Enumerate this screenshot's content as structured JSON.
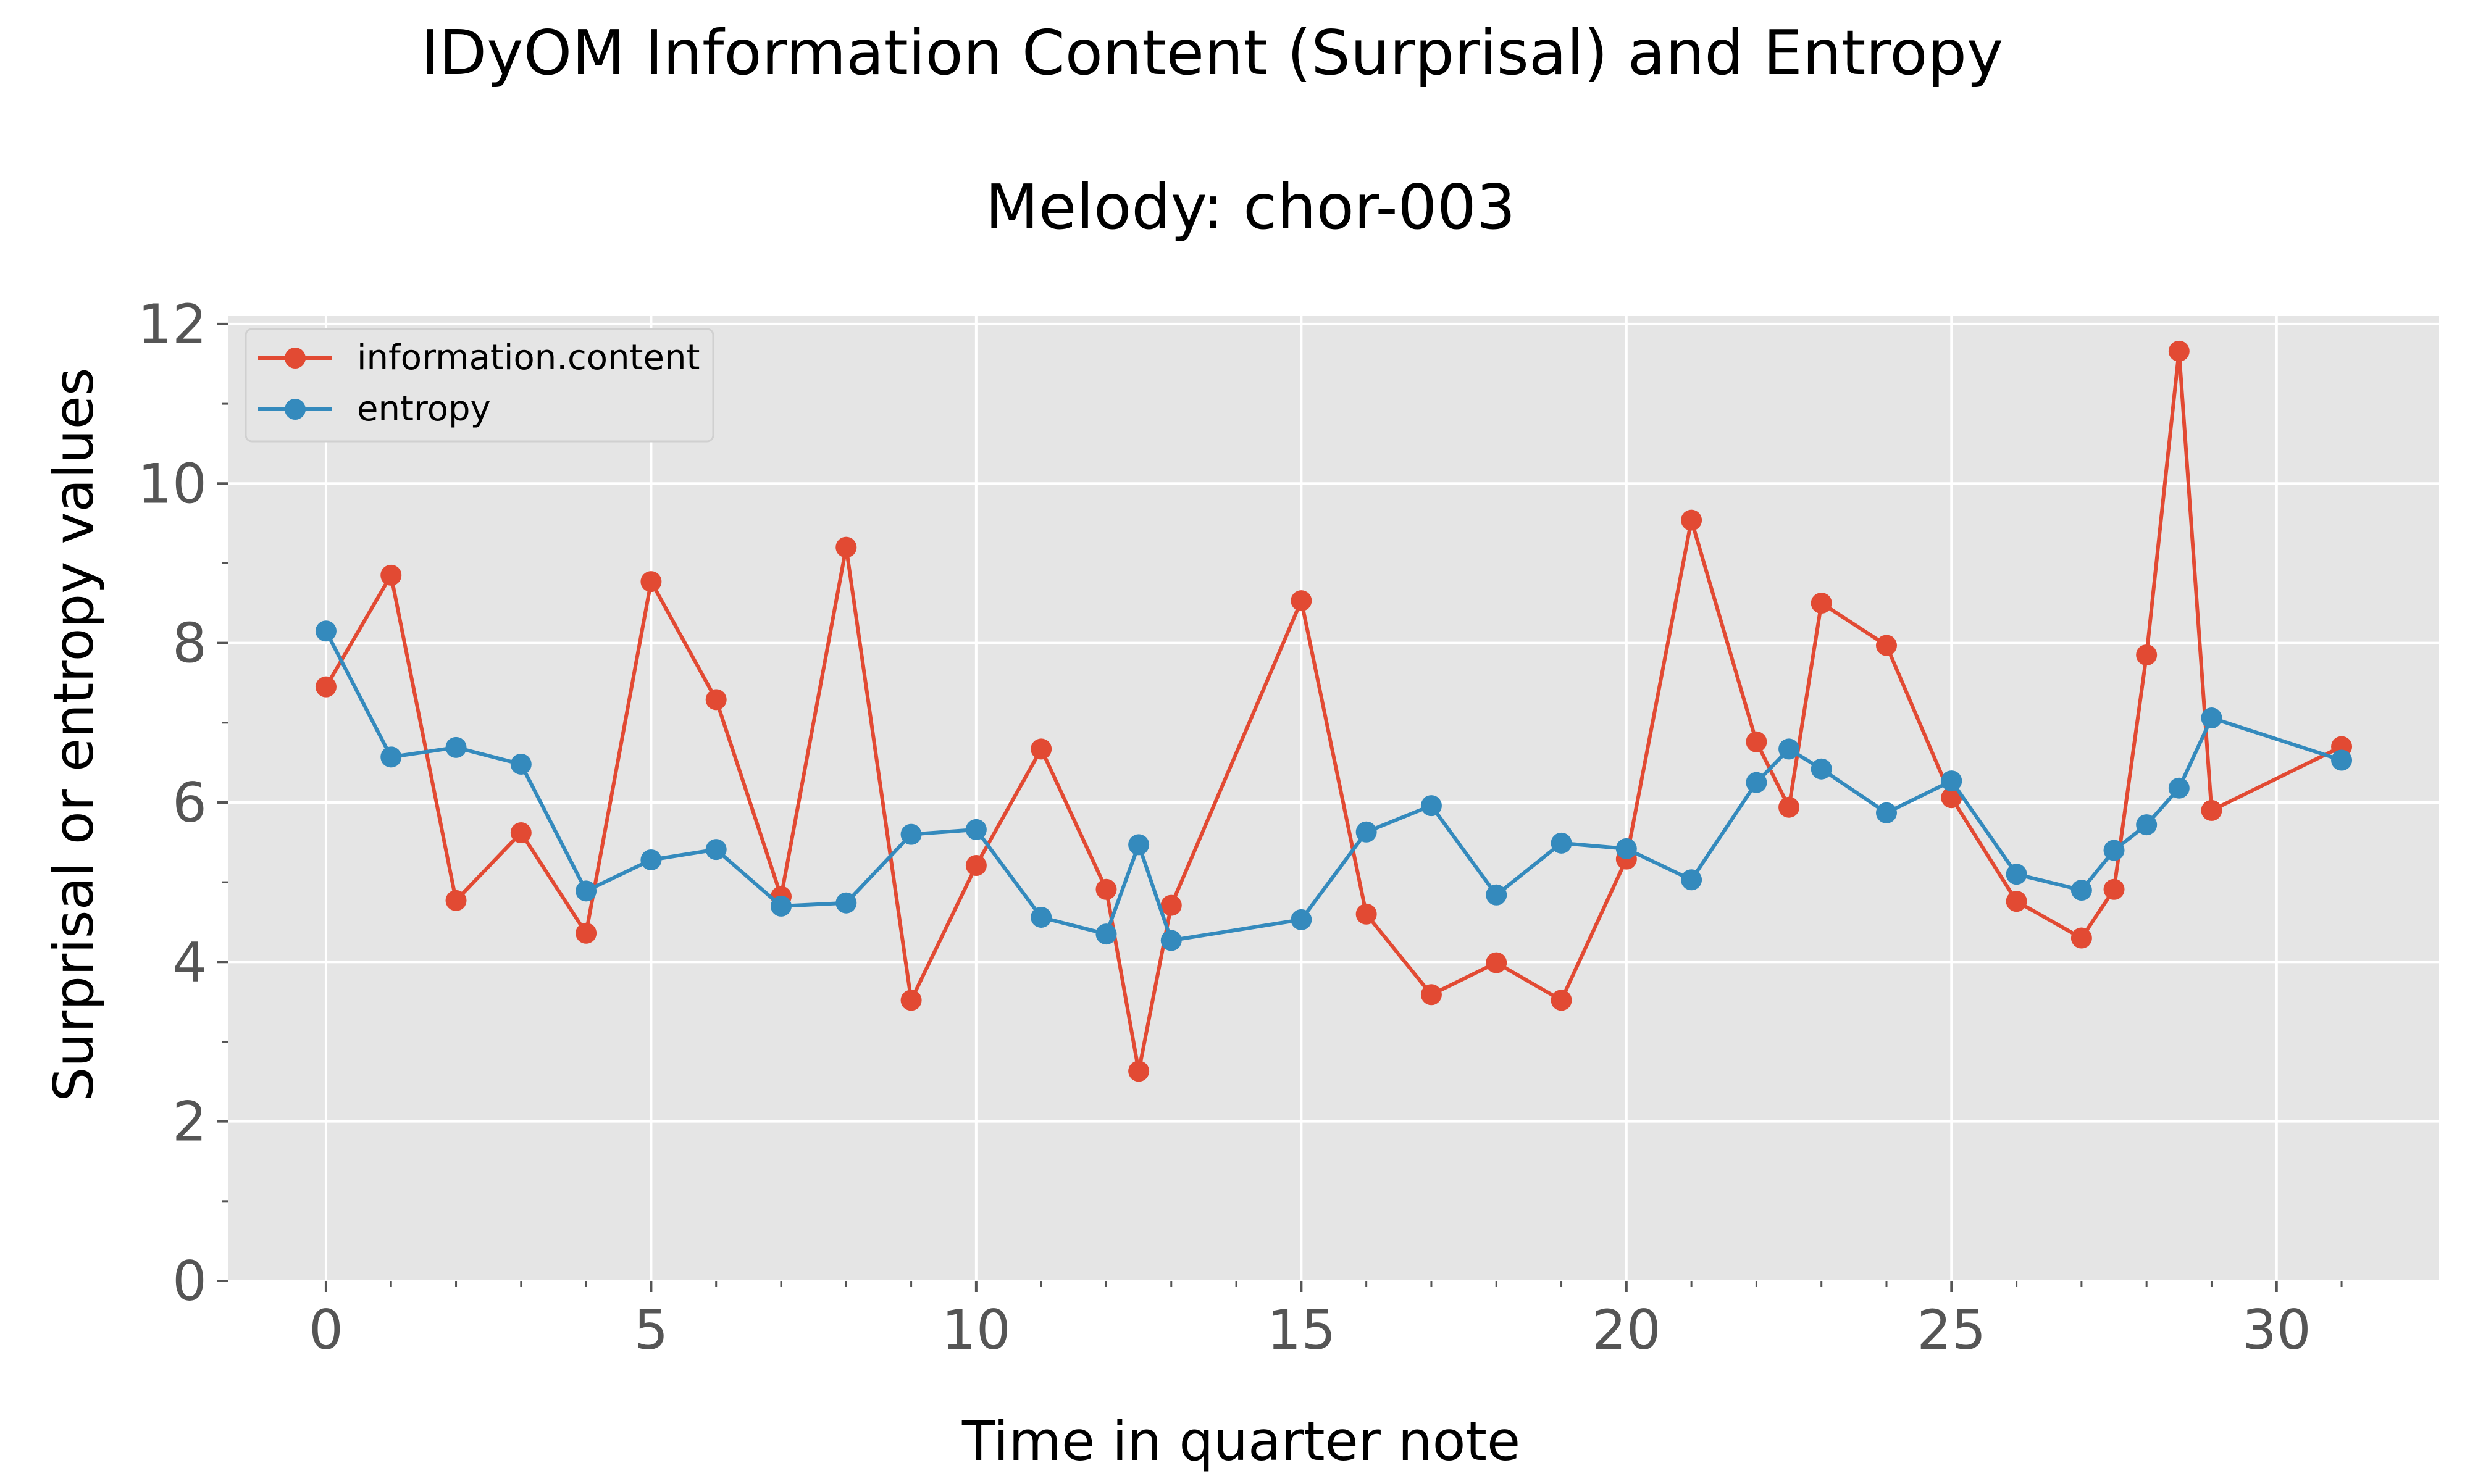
{
  "chart_data": {
    "type": "line",
    "title": "IDyOM Information Content (Surprisal) and Entropy",
    "subtitle": "Melody: chor-003",
    "xlabel": "Time in quarter note",
    "ylabel": "Surprisal or entropy values",
    "xlim": [
      -1.5,
      32.5
    ],
    "ylim": [
      0,
      12.1
    ],
    "xticks": [
      0,
      5,
      10,
      15,
      20,
      25,
      30
    ],
    "xtick_labels": [
      "0",
      "5",
      "10",
      "15",
      "20",
      "25",
      "30"
    ],
    "xticks_minor": [
      1,
      2,
      3,
      4,
      6,
      7,
      8,
      9,
      11,
      12,
      13,
      14,
      16,
      17,
      18,
      19,
      21,
      22,
      23,
      24,
      26,
      27,
      28,
      29,
      31
    ],
    "yticks": [
      0,
      2,
      4,
      6,
      8,
      10,
      12
    ],
    "ytick_labels": [
      "0",
      "2",
      "4",
      "6",
      "8",
      "10",
      "12"
    ],
    "yticks_minor": [
      1,
      3,
      5,
      7,
      9,
      11
    ],
    "grid": true,
    "legend_position": "top-left",
    "x": [
      0,
      1,
      2,
      3,
      4,
      5,
      6,
      7,
      8,
      9,
      10,
      11,
      12,
      12.5,
      13,
      15,
      16,
      17,
      18,
      19,
      20,
      21,
      22,
      22.5,
      23,
      24,
      25,
      26,
      27,
      27.5,
      28,
      28.5,
      29,
      31
    ],
    "series": [
      {
        "name": "information.content",
        "color": "#E24A33",
        "values": [
          7.45,
          8.85,
          4.77,
          5.62,
          4.36,
          8.77,
          7.29,
          4.82,
          9.2,
          3.52,
          5.21,
          6.67,
          4.91,
          2.63,
          4.71,
          8.53,
          4.6,
          3.59,
          3.99,
          3.52,
          5.29,
          9.54,
          6.76,
          5.94,
          8.5,
          7.97,
          6.06,
          4.76,
          4.3,
          4.91,
          7.85,
          11.66,
          5.9,
          6.7
        ]
      },
      {
        "name": "entropy",
        "color": "#348ABD",
        "values": [
          8.15,
          6.57,
          6.69,
          6.48,
          4.89,
          5.28,
          5.41,
          4.7,
          4.74,
          5.6,
          5.66,
          4.56,
          4.35,
          5.47,
          4.27,
          4.53,
          5.63,
          5.96,
          4.84,
          5.49,
          5.42,
          5.03,
          6.25,
          6.67,
          6.42,
          5.87,
          6.27,
          5.1,
          4.9,
          5.4,
          5.72,
          6.18,
          7.06,
          6.53
        ]
      }
    ]
  },
  "colors": {
    "plot_background": "#E5E5E5",
    "grid": "#FFFFFF",
    "tick_label": "#555555",
    "axis_label": "#000000"
  }
}
